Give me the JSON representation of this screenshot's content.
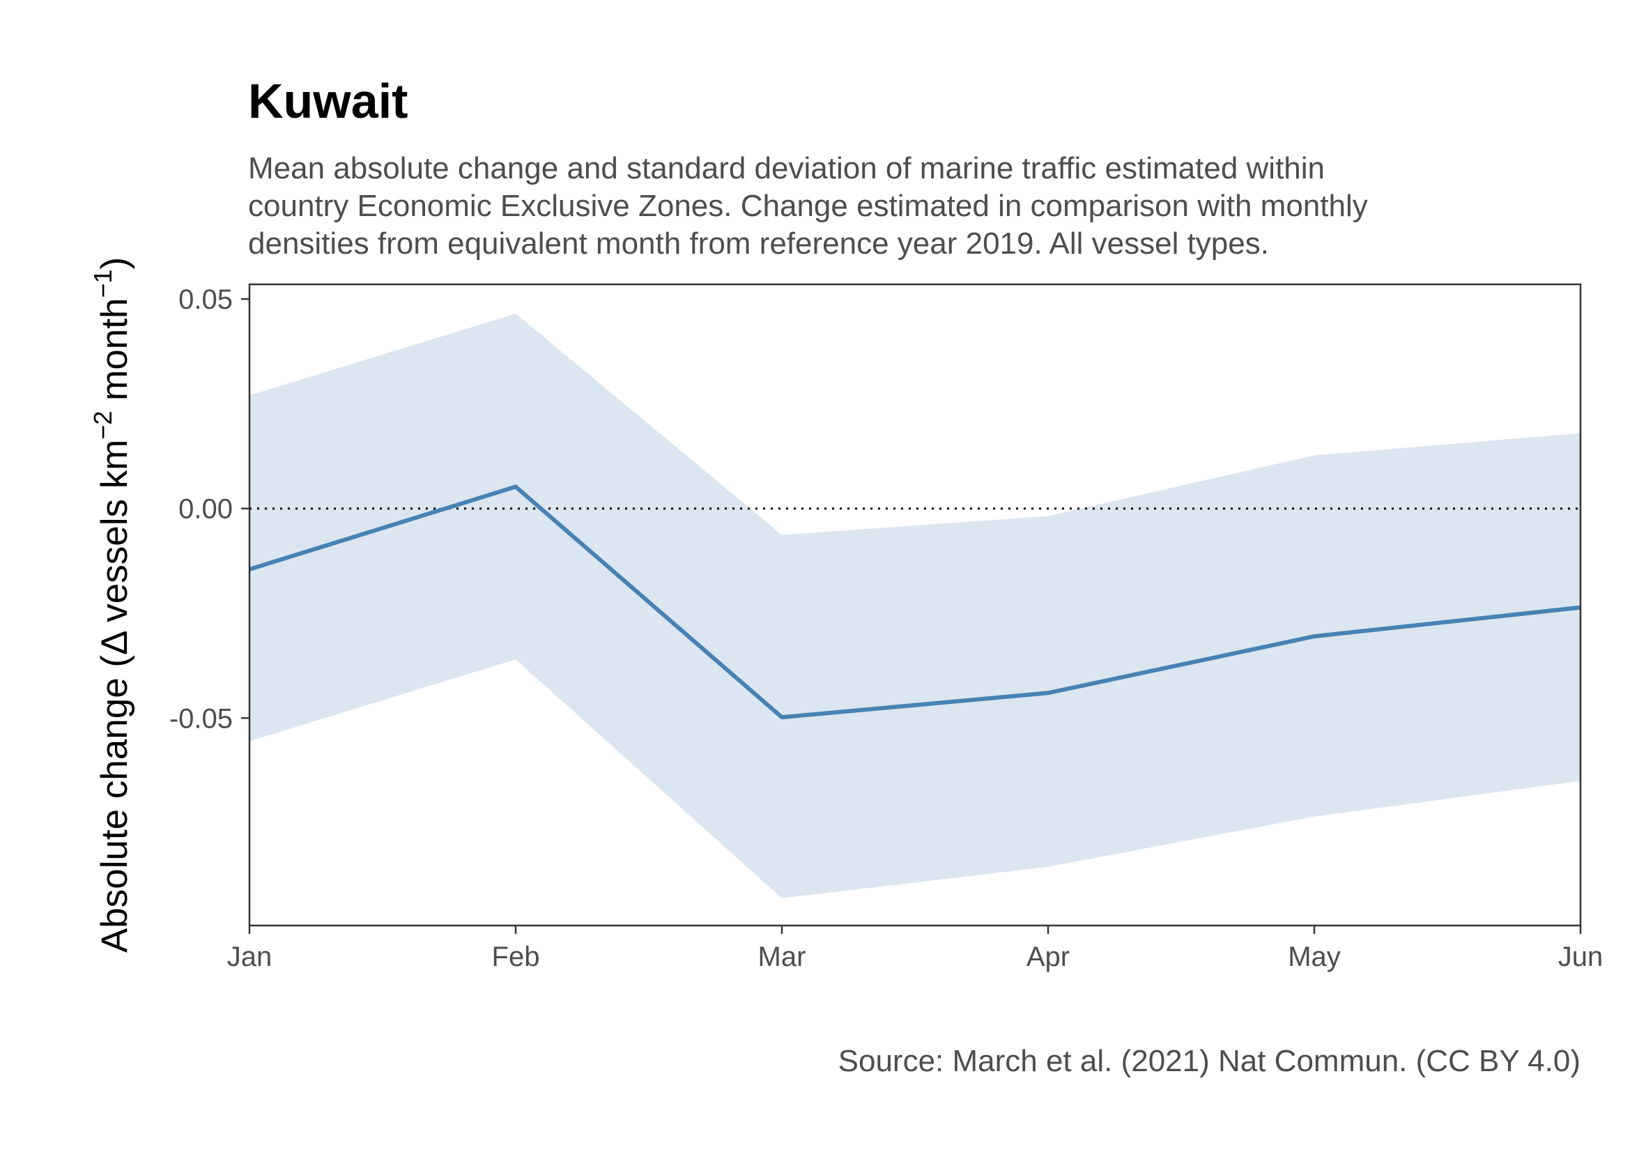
{
  "chart_data": {
    "type": "line",
    "title": "Kuwait",
    "subtitle_lines": [
      "Mean absolute change and standard deviation of marine traffic estimated within",
      "country Economic Exclusive Zones. Change estimated in comparison with monthly",
      "densities from equivalent month from reference year 2019. All vessel types."
    ],
    "ylabel": {
      "prefix": "Absolute change (",
      "delta": "Δ",
      "text1": " vessels km",
      "sup1": "−2",
      "text2": " month",
      "sup2": "−1",
      "suffix": ")"
    },
    "xlabel": "",
    "categories": [
      "Jan",
      "Feb",
      "Mar",
      "Apr",
      "May",
      "Jun"
    ],
    "series": [
      {
        "values": [
          -0.0145,
          0.0052,
          -0.0498,
          -0.044,
          -0.0305,
          -0.0236
        ],
        "band_upper": [
          0.027,
          0.0465,
          -0.0063,
          -0.0018,
          0.0127,
          0.018
        ],
        "band_lower": [
          -0.0555,
          -0.036,
          -0.093,
          -0.0855,
          -0.0735,
          -0.065
        ]
      }
    ],
    "yticks": [
      0.05,
      0.0,
      -0.05
    ],
    "ytick_labels": [
      "0.05",
      "0.00",
      "-0.05"
    ],
    "ylim": [
      -0.0995,
      0.0535
    ],
    "reference_line": 0,
    "grid": false,
    "caption": "Source: March et al. (2021) Nat Commun. (CC BY 4.0)",
    "colors": {
      "line": "#4682b4",
      "band": "#dce6f0",
      "axis": "#333333",
      "text": "#4d4d4d"
    }
  }
}
